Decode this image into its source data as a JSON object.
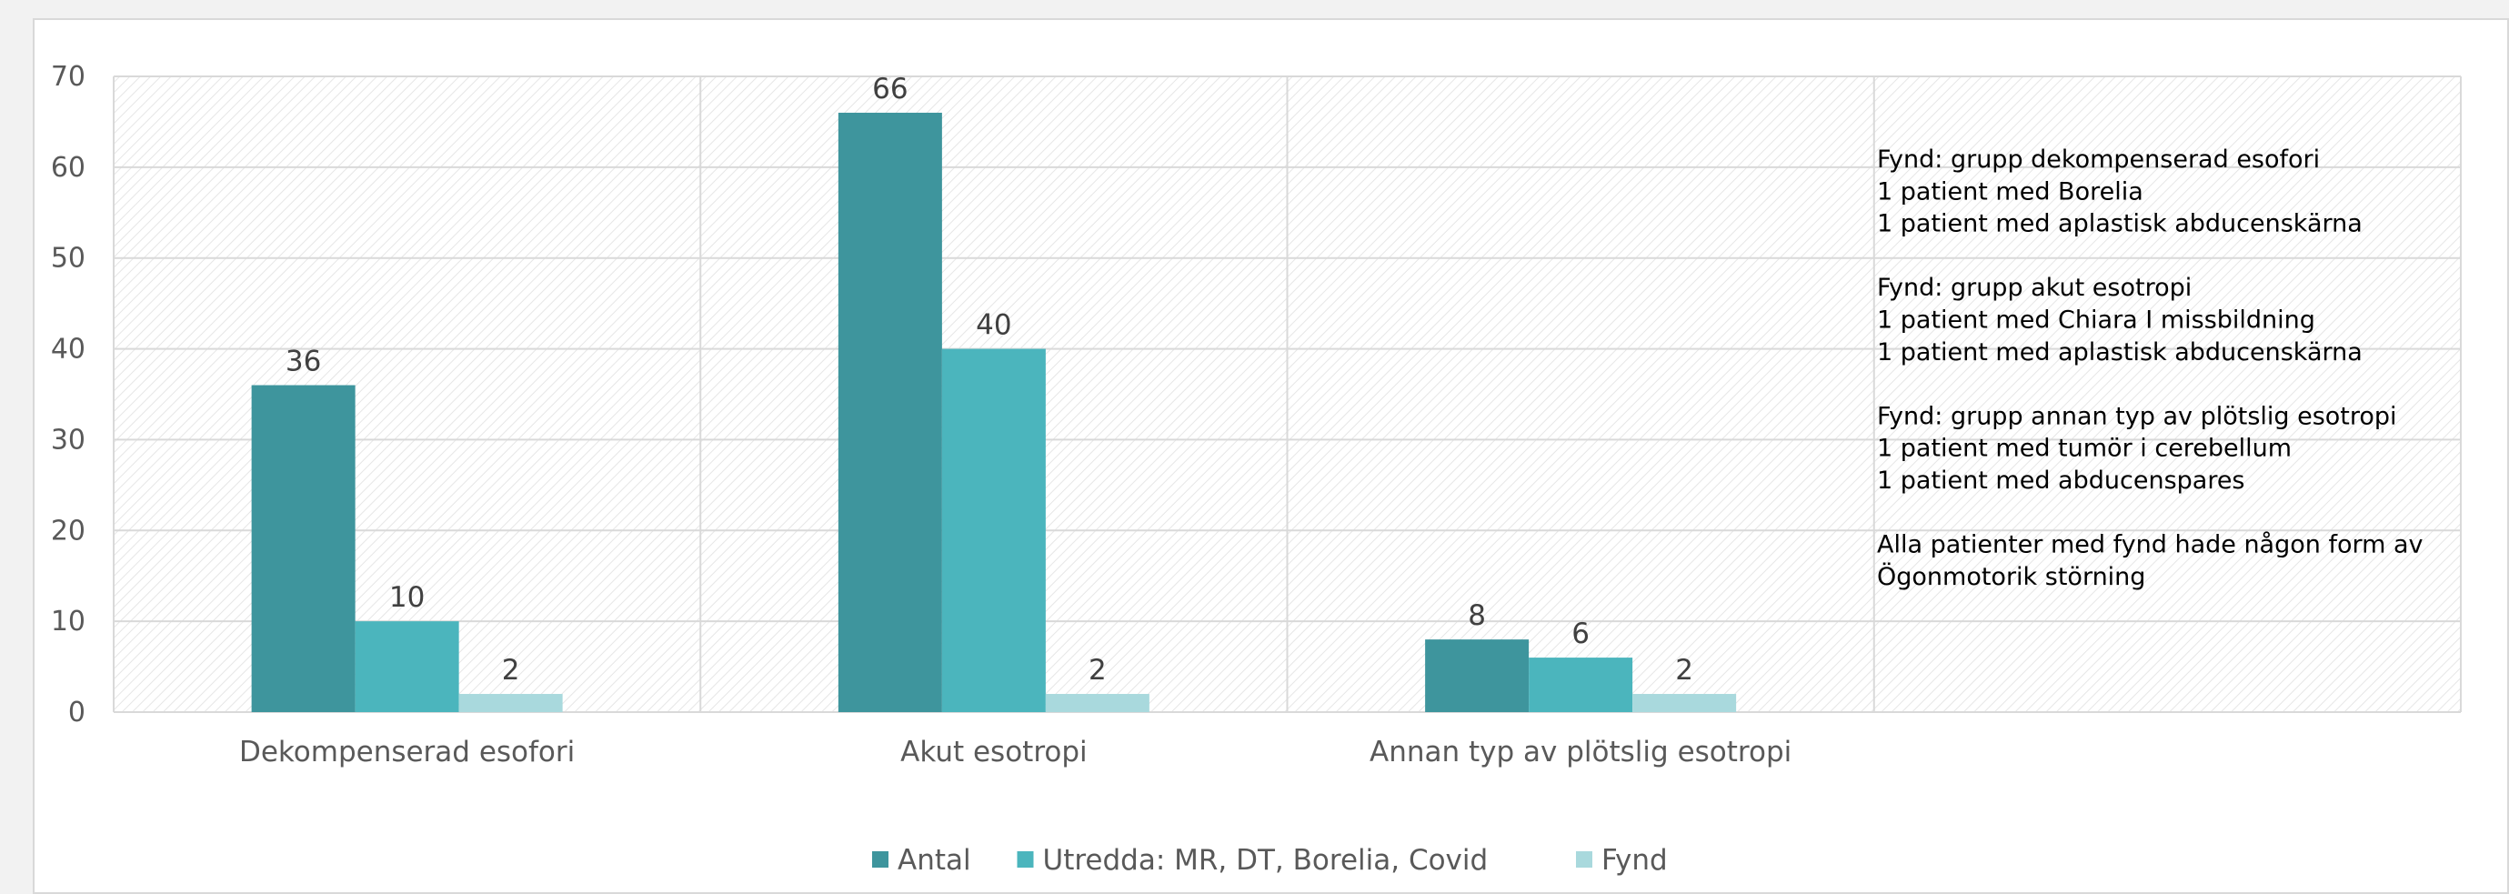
{
  "chart_data": {
    "type": "bar",
    "categories": [
      "Dekompenserad esofori",
      "Akut esotropi",
      "Annan typ av plötslig esotropi"
    ],
    "series": [
      {
        "name": "Antal",
        "values": [
          36,
          66,
          8
        ],
        "color": "#3e959d"
      },
      {
        "name": "Utredda: MR, DT, Borelia, Covid",
        "values": [
          10,
          40,
          6
        ],
        "color": "#4bb5bd"
      },
      {
        "name": "Fynd",
        "values": [
          2,
          2,
          2
        ],
        "color": "#a9d9dd"
      }
    ],
    "yticks": [
      "0",
      "10",
      "20",
      "30",
      "40",
      "50",
      "60",
      "70"
    ],
    "ylim": [
      0,
      70
    ],
    "title": "",
    "xlabel": "",
    "ylabel": "",
    "grid": true,
    "legend_position": "bottom",
    "annotation_lines": [
      "Fynd: grupp dekompenserad esofori",
      "1 patient med  Borelia",
      "1 patient med aplastisk abducenskärna",
      "",
      "Fynd: grupp akut esotropi",
      "1 patient med Chiara I missbildning",
      "1 patient med aplastisk abducenskärna",
      "",
      "Fynd: grupp annan typ av plötslig esotropi",
      "1 patient med tumör i cerebellum",
      "1 patient med abducenspares",
      "",
      "Alla patienter med fynd hade någon form av",
      "Ögonmotorik störning"
    ]
  }
}
